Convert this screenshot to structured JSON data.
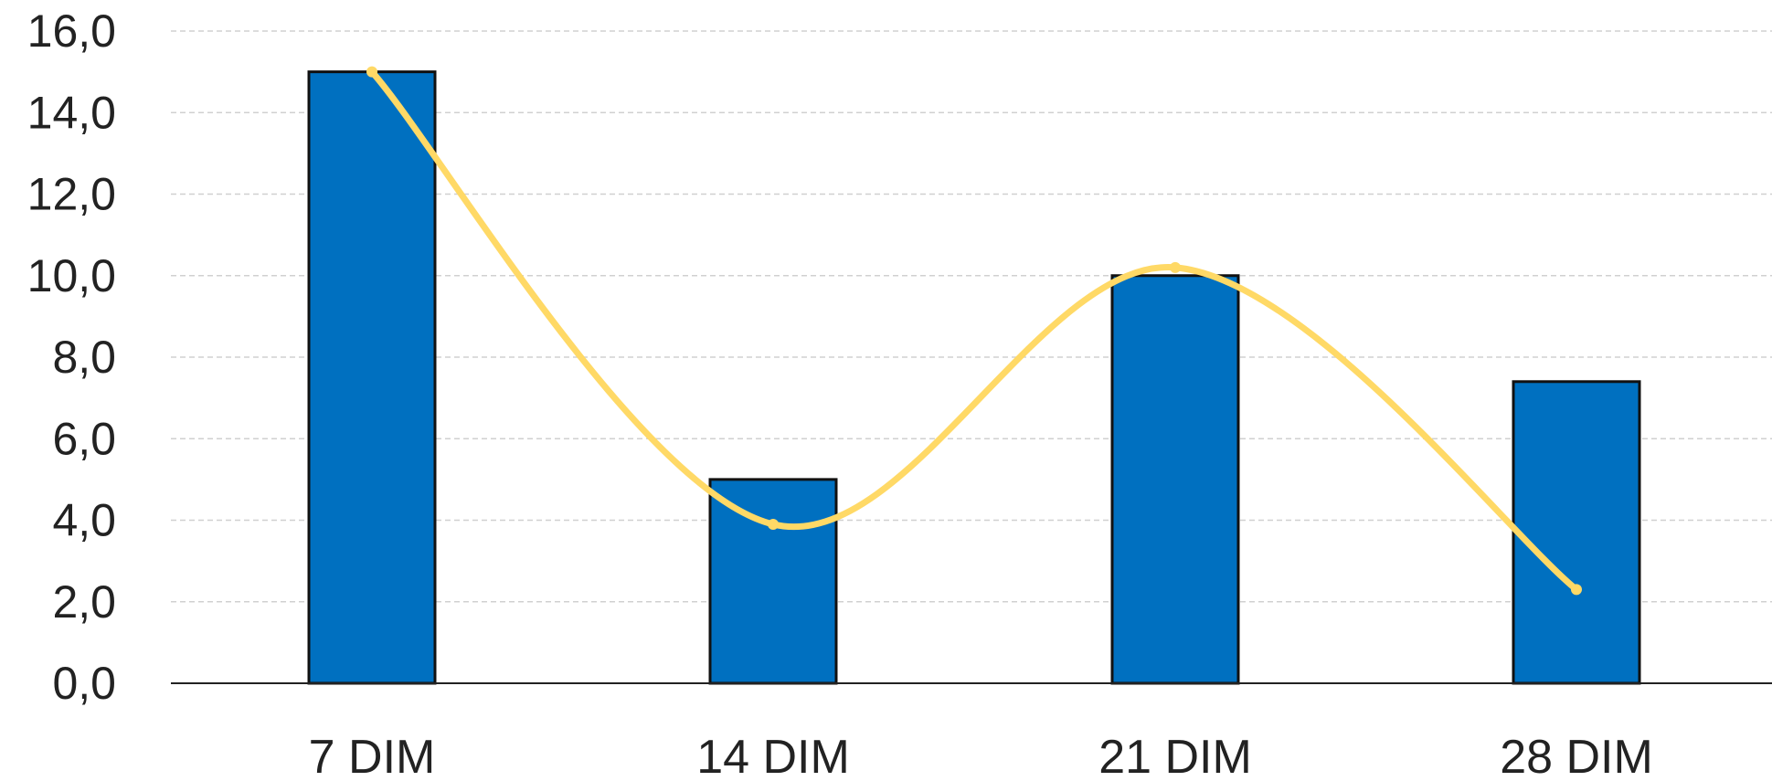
{
  "chart_data": {
    "type": "bar",
    "categories": [
      "7 DIM",
      "14 DIM",
      "21 DIM",
      "28 DIM"
    ],
    "series": [
      {
        "type": "bar",
        "values": [
          15.0,
          5.0,
          10.0,
          7.4
        ],
        "color": "#0070C0"
      },
      {
        "type": "line",
        "smooth": true,
        "values": [
          15.0,
          3.9,
          10.2,
          2.3
        ],
        "color": "#FFD966"
      }
    ],
    "ylim": [
      0,
      16
    ],
    "yticks": [
      "0,0",
      "2,0",
      "4,0",
      "6,0",
      "8,0",
      "10,0",
      "12,0",
      "14,0",
      "16,0"
    ],
    "ytick_values": [
      0,
      2,
      4,
      6,
      8,
      10,
      12,
      14,
      16
    ],
    "grid": true,
    "title": "",
    "xlabel": "",
    "ylabel": ""
  }
}
